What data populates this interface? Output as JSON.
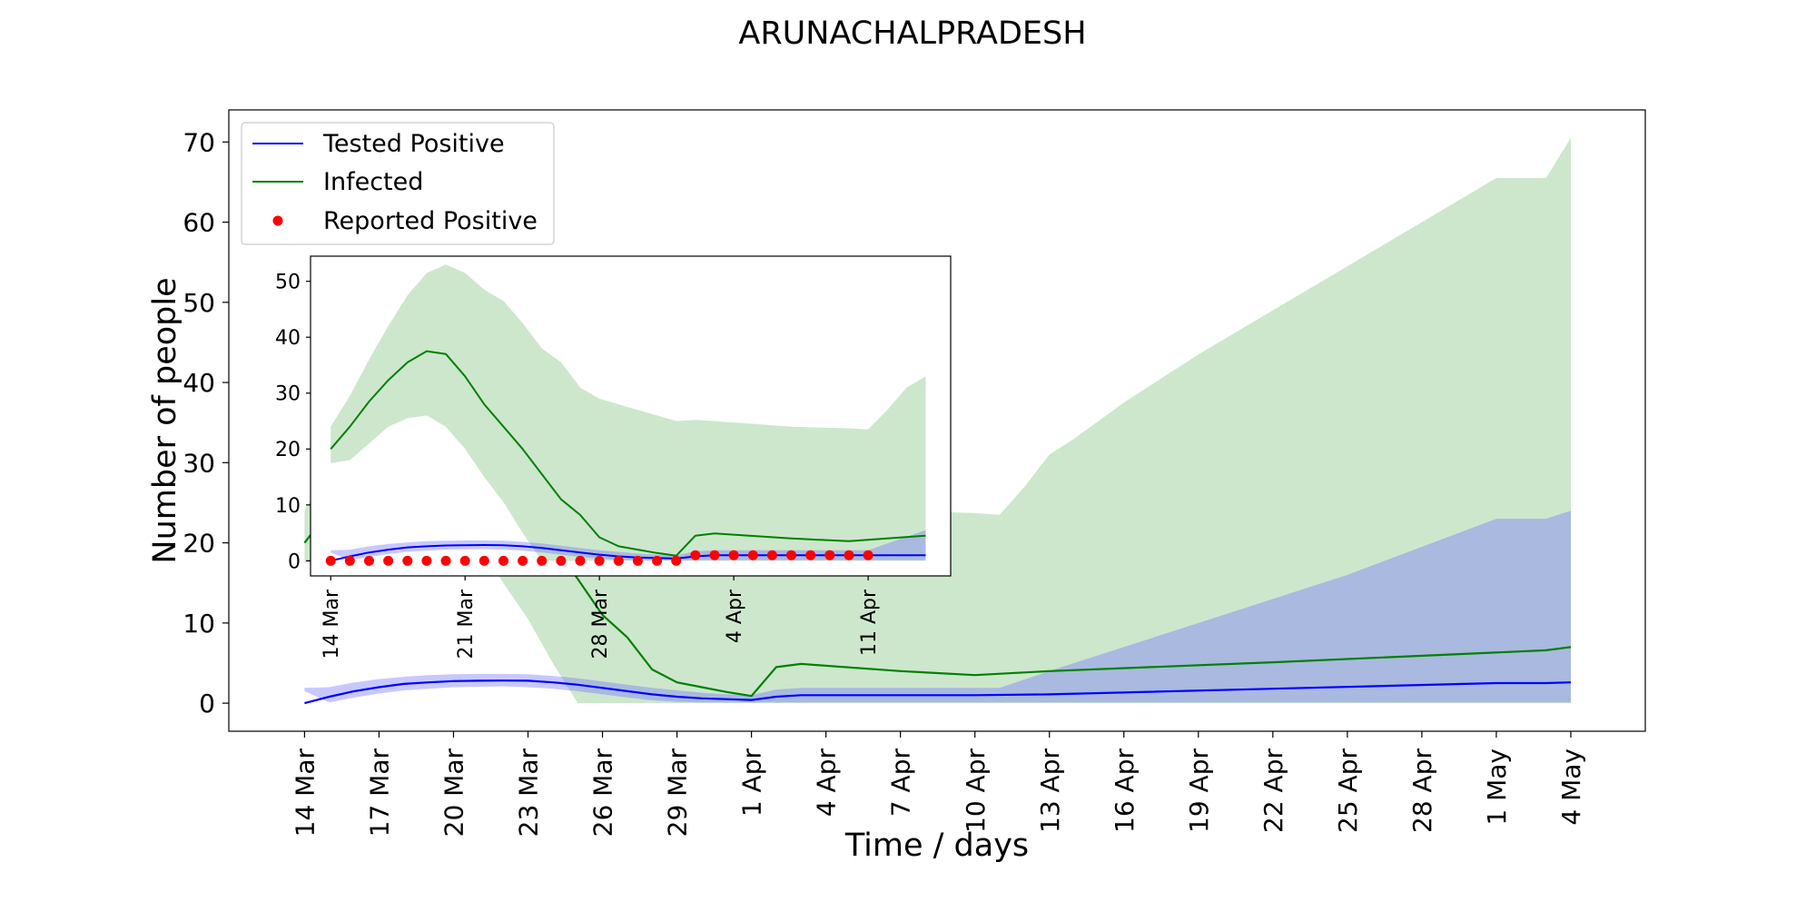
{
  "chart_data": [
    {
      "type": "line",
      "panel": "main",
      "title": "ARUNACHALPRADESH",
      "xlabel": "Time / days",
      "ylabel": "Number of people",
      "xlim": [
        "2020-03-14",
        "2020-05-04"
      ],
      "ylim": [
        -3.5,
        74
      ],
      "x_ticks": [
        "14 Mar",
        "17 Mar",
        "20 Mar",
        "23 Mar",
        "26 Mar",
        "29 Mar",
        "1 Apr",
        "4 Apr",
        "7 Apr",
        "10 Apr",
        "13 Apr",
        "16 Apr",
        "19 Apr",
        "22 Apr",
        "25 Apr",
        "28 Apr",
        "1 May",
        "4 May"
      ],
      "y_ticks": [
        0,
        10,
        20,
        30,
        40,
        50,
        60,
        70
      ],
      "legend": {
        "placement": "upper-left",
        "entries": [
          "Tested Positive",
          "Infected",
          "Reported Positive"
        ]
      },
      "grid": false,
      "series": [
        {
          "name": "Tested Positive",
          "color": "#0000ff",
          "x": [
            "2020-03-14",
            "2020-03-15",
            "2020-03-16",
            "2020-03-17",
            "2020-03-18",
            "2020-03-19",
            "2020-03-20",
            "2020-03-21",
            "2020-03-22",
            "2020-03-23",
            "2020-03-24",
            "2020-03-25",
            "2020-03-26",
            "2020-03-27",
            "2020-03-28",
            "2020-03-29",
            "2020-03-30",
            "2020-03-31",
            "2020-04-01",
            "2020-04-02",
            "2020-04-03",
            "2020-04-10",
            "2020-04-13",
            "2020-04-22",
            "2020-05-01",
            "2020-05-03",
            "2020-05-04"
          ],
          "values": [
            0,
            0.8,
            1.5,
            2.0,
            2.4,
            2.6,
            2.75,
            2.8,
            2.82,
            2.8,
            2.6,
            2.3,
            1.9,
            1.5,
            1.1,
            0.8,
            0.6,
            0.5,
            0.4,
            0.8,
            1.0,
            1.0,
            1.1,
            1.8,
            2.5,
            2.5,
            2.6
          ]
        },
        {
          "name": "Tested Positive range",
          "color": "#8080ff",
          "x": [
            "2020-03-14",
            "2020-03-15",
            "2020-03-16",
            "2020-03-17",
            "2020-03-18",
            "2020-03-19",
            "2020-03-20",
            "2020-03-21",
            "2020-03-22",
            "2020-03-23",
            "2020-03-24",
            "2020-03-25",
            "2020-03-26",
            "2020-03-27",
            "2020-03-28",
            "2020-03-29",
            "2020-03-30",
            "2020-03-31",
            "2020-04-01",
            "2020-04-02",
            "2020-04-03",
            "2020-04-10",
            "2020-04-11",
            "2020-04-13",
            "2020-04-16",
            "2020-04-19",
            "2020-04-22",
            "2020-04-25",
            "2020-04-28",
            "2020-05-01",
            "2020-05-03",
            "2020-05-04"
          ],
          "lower": [
            1.5,
            0.1,
            0.7,
            1.2,
            1.6,
            1.8,
            2.0,
            2.05,
            2.1,
            2.0,
            1.8,
            1.5,
            1.1,
            0.7,
            0.35,
            0.15,
            0.1,
            0.1,
            0.1,
            0.1,
            0.1,
            0.1,
            0.1,
            0.1,
            0.1,
            0.1,
            0.1,
            0.1,
            0.1,
            0.1,
            0.1,
            0.1
          ],
          "upper": [
            1.9,
            2.0,
            2.6,
            3.0,
            3.3,
            3.5,
            3.6,
            3.65,
            3.65,
            3.6,
            3.4,
            3.1,
            2.7,
            2.3,
            1.9,
            1.6,
            1.3,
            1.1,
            1.0,
            1.7,
            1.9,
            1.9,
            1.9,
            4.0,
            7.0,
            10.0,
            13.0,
            16.0,
            19.5,
            23.0,
            23.0,
            24.0
          ]
        },
        {
          "name": "Infected",
          "color": "#008000",
          "x": [
            "2020-03-14",
            "2020-03-15",
            "2020-03-16",
            "2020-03-17",
            "2020-03-18",
            "2020-03-19",
            "2020-03-20",
            "2020-03-21",
            "2020-03-22",
            "2020-03-23",
            "2020-03-24",
            "2020-03-25",
            "2020-03-26",
            "2020-03-27",
            "2020-03-28",
            "2020-03-29",
            "2020-03-30",
            "2020-03-31",
            "2020-04-01",
            "2020-04-02",
            "2020-04-03",
            "2020-04-07",
            "2020-04-10",
            "2020-04-13",
            "2020-04-22",
            "2020-05-03",
            "2020-05-04"
          ],
          "values": [
            20.0,
            24.0,
            28.5,
            32.3,
            35.5,
            37.5,
            37.0,
            33.0,
            28.0,
            24.0,
            20.0,
            15.5,
            11.0,
            8.2,
            4.2,
            2.6,
            2.0,
            1.4,
            0.9,
            4.5,
            4.9,
            4.0,
            3.5,
            4.0,
            5.1,
            6.6,
            7.0
          ]
        },
        {
          "name": "Infected range",
          "color": "#cce5cc",
          "x": [
            "2020-03-14",
            "2020-03-15",
            "2020-03-16",
            "2020-03-17",
            "2020-03-18",
            "2020-03-19",
            "2020-03-20",
            "2020-03-21",
            "2020-03-22",
            "2020-03-23",
            "2020-03-24",
            "2020-03-25",
            "2020-03-26",
            "2020-03-27",
            "2020-03-28",
            "2020-03-29",
            "2020-03-30",
            "2020-03-31",
            "2020-04-01",
            "2020-04-02",
            "2020-04-03",
            "2020-04-07",
            "2020-04-10",
            "2020-04-11",
            "2020-04-12",
            "2020-04-13",
            "2020-04-14",
            "2020-04-16",
            "2020-04-19",
            "2020-04-22",
            "2020-04-25",
            "2020-04-28",
            "2020-05-01",
            "2020-05-02",
            "2020-05-03",
            "2020-05-04"
          ],
          "lower": [
            17.5,
            18.0,
            21.0,
            24.0,
            25.5,
            26.0,
            24.0,
            20.0,
            15.0,
            10.5,
            5.0,
            0,
            0,
            0,
            0,
            0,
            0,
            0,
            0,
            0,
            0,
            0,
            0,
            0,
            0,
            0,
            0,
            0,
            0,
            0,
            0,
            0,
            0,
            0,
            0,
            0
          ],
          "upper": [
            24.0,
            29.5,
            36.0,
            42.0,
            47.5,
            51.5,
            53.0,
            51.5,
            48.5,
            46.5,
            42.5,
            38.0,
            35.5,
            31.0,
            29.0,
            28.0,
            27.0,
            26.0,
            25.0,
            25.2,
            25.0,
            24.0,
            23.7,
            23.5,
            27.0,
            31.0,
            33.0,
            37.5,
            43.5,
            49.0,
            54.5,
            60.0,
            65.5,
            65.5,
            65.5,
            70.5
          ]
        }
      ]
    },
    {
      "type": "line",
      "panel": "inset",
      "title": "",
      "xlim": [
        "2020-03-13",
        "2020-04-15"
      ],
      "ylim": [
        -2.7,
        54.5
      ],
      "x_ticks": [
        "14 Mar",
        "21 Mar",
        "28 Mar",
        "4 Apr",
        "11 Apr"
      ],
      "y_ticks": [
        0,
        10,
        20,
        30,
        40,
        50
      ],
      "grid": false,
      "series": [
        {
          "name": "Tested Positive",
          "color": "#0000ff",
          "x": [
            "2020-03-14",
            "2020-03-15",
            "2020-03-16",
            "2020-03-17",
            "2020-03-18",
            "2020-03-19",
            "2020-03-20",
            "2020-03-21",
            "2020-03-22",
            "2020-03-23",
            "2020-03-24",
            "2020-03-25",
            "2020-03-26",
            "2020-03-27",
            "2020-03-28",
            "2020-03-29",
            "2020-03-30",
            "2020-03-31",
            "2020-04-01",
            "2020-04-02",
            "2020-04-03",
            "2020-04-14"
          ],
          "values": [
            0,
            0.8,
            1.5,
            2.0,
            2.4,
            2.6,
            2.75,
            2.8,
            2.82,
            2.8,
            2.6,
            2.3,
            1.9,
            1.5,
            1.1,
            0.8,
            0.6,
            0.5,
            0.4,
            0.8,
            1.0,
            1.0
          ]
        },
        {
          "name": "Tested Positive range",
          "color": "#8080ff",
          "x": [
            "2020-03-14",
            "2020-03-15",
            "2020-03-16",
            "2020-03-17",
            "2020-03-18",
            "2020-03-19",
            "2020-03-20",
            "2020-03-21",
            "2020-03-22",
            "2020-03-23",
            "2020-03-24",
            "2020-03-25",
            "2020-03-26",
            "2020-03-27",
            "2020-03-28",
            "2020-03-29",
            "2020-03-30",
            "2020-03-31",
            "2020-04-01",
            "2020-04-02",
            "2020-04-03",
            "2020-04-10",
            "2020-04-11",
            "2020-04-14"
          ],
          "lower": [
            1.5,
            0.1,
            0.7,
            1.2,
            1.6,
            1.8,
            2.0,
            2.05,
            2.1,
            2.0,
            1.8,
            1.5,
            1.1,
            0.7,
            0.35,
            0.15,
            0.1,
            0.1,
            0.1,
            0.1,
            0.1,
            0.1,
            0.1,
            0.1
          ],
          "upper": [
            1.9,
            2.0,
            2.6,
            3.0,
            3.3,
            3.5,
            3.6,
            3.65,
            3.65,
            3.6,
            3.4,
            3.1,
            2.7,
            2.3,
            1.9,
            1.6,
            1.3,
            1.1,
            1.0,
            1.7,
            1.9,
            1.9,
            1.9,
            5.5
          ]
        },
        {
          "name": "Infected",
          "color": "#008000",
          "x": [
            "2020-03-14",
            "2020-03-15",
            "2020-03-16",
            "2020-03-17",
            "2020-03-18",
            "2020-03-19",
            "2020-03-20",
            "2020-03-21",
            "2020-03-22",
            "2020-03-23",
            "2020-03-24",
            "2020-03-25",
            "2020-03-26",
            "2020-03-27",
            "2020-03-28",
            "2020-03-29",
            "2020-03-30",
            "2020-03-31",
            "2020-04-01",
            "2020-04-02",
            "2020-04-03",
            "2020-04-07",
            "2020-04-10",
            "2020-04-14"
          ],
          "values": [
            20.0,
            24.0,
            28.5,
            32.3,
            35.5,
            37.5,
            37.0,
            33.0,
            28.0,
            24.0,
            20.0,
            15.5,
            11.0,
            8.2,
            4.2,
            2.6,
            2.0,
            1.4,
            0.9,
            4.5,
            4.9,
            4.0,
            3.5,
            4.5
          ]
        },
        {
          "name": "Infected range",
          "color": "#cce5cc",
          "x": [
            "2020-03-14",
            "2020-03-15",
            "2020-03-16",
            "2020-03-17",
            "2020-03-18",
            "2020-03-19",
            "2020-03-20",
            "2020-03-21",
            "2020-03-22",
            "2020-03-23",
            "2020-03-24",
            "2020-03-25",
            "2020-03-26",
            "2020-03-27",
            "2020-03-28",
            "2020-03-29",
            "2020-03-30",
            "2020-03-31",
            "2020-04-01",
            "2020-04-02",
            "2020-04-03",
            "2020-04-07",
            "2020-04-10",
            "2020-04-11",
            "2020-04-12",
            "2020-04-13",
            "2020-04-14"
          ],
          "lower": [
            17.5,
            18.0,
            21.0,
            24.0,
            25.5,
            26.0,
            24.0,
            20.0,
            15.0,
            10.5,
            5.0,
            0,
            0,
            0,
            0,
            0,
            0,
            0,
            0,
            0,
            0,
            0,
            0,
            0,
            0,
            0,
            0
          ],
          "upper": [
            24.0,
            29.5,
            36.0,
            42.0,
            47.5,
            51.5,
            53.0,
            51.5,
            48.5,
            46.5,
            42.5,
            38.0,
            35.5,
            31.0,
            29.0,
            28.0,
            27.0,
            26.0,
            25.0,
            25.2,
            25.0,
            24.0,
            23.7,
            23.5,
            27.0,
            31.0,
            33.0
          ]
        },
        {
          "name": "Reported Positive",
          "color": "#ff0000",
          "x": [
            "2020-03-14",
            "2020-03-15",
            "2020-03-16",
            "2020-03-17",
            "2020-03-18",
            "2020-03-19",
            "2020-03-20",
            "2020-03-21",
            "2020-03-22",
            "2020-03-23",
            "2020-03-24",
            "2020-03-25",
            "2020-03-26",
            "2020-03-27",
            "2020-03-28",
            "2020-03-29",
            "2020-03-30",
            "2020-03-31",
            "2020-04-01",
            "2020-04-02",
            "2020-04-03",
            "2020-04-04",
            "2020-04-05",
            "2020-04-06",
            "2020-04-07",
            "2020-04-08",
            "2020-04-09",
            "2020-04-10",
            "2020-04-11"
          ],
          "values": [
            0,
            0,
            0,
            0,
            0,
            0,
            0,
            0,
            0,
            0,
            0,
            0,
            0,
            0,
            0,
            0,
            0,
            0,
            0,
            1,
            1,
            1,
            1,
            1,
            1,
            1,
            1,
            1,
            1
          ]
        }
      ]
    }
  ]
}
